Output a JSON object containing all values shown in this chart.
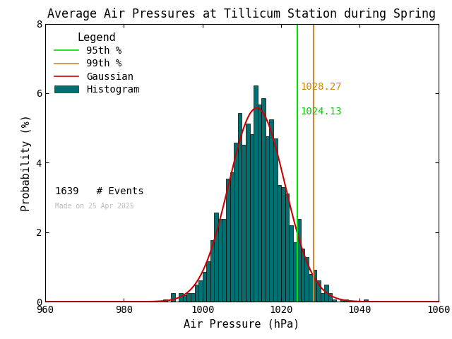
{
  "title": "Average Air Pressures at Tillicum Station during Spring",
  "xlabel": "Air Pressure (hPa)",
  "ylabel": "Probability (%)",
  "xlim": [
    960,
    1060
  ],
  "ylim": [
    0,
    8
  ],
  "xticks": [
    960,
    980,
    1000,
    1020,
    1040,
    1060
  ],
  "yticks": [
    0,
    2,
    4,
    6,
    8
  ],
  "mean": 1013.5,
  "std": 7.2,
  "n_events": 1639,
  "percentile_95": 1024.13,
  "percentile_99": 1028.27,
  "bin_width": 1,
  "hist_color": "#007070",
  "hist_edge_color": "#000000",
  "gaussian_color": "#cc0000",
  "p95_color": "#00dd00",
  "p99_color": "#cc8833",
  "background_color": "#ffffff",
  "title_fontsize": 12,
  "label_fontsize": 11,
  "tick_fontsize": 10,
  "legend_fontsize": 10,
  "watermark": "Made on 25 Apr 2025",
  "watermark_color": "#bbbbbb",
  "p95_label": "1024.13",
  "p99_label": "1028.27",
  "p95_text_color": "#00cc00",
  "p99_text_color": "#cc8800",
  "n_events_label": "1639   # Events"
}
